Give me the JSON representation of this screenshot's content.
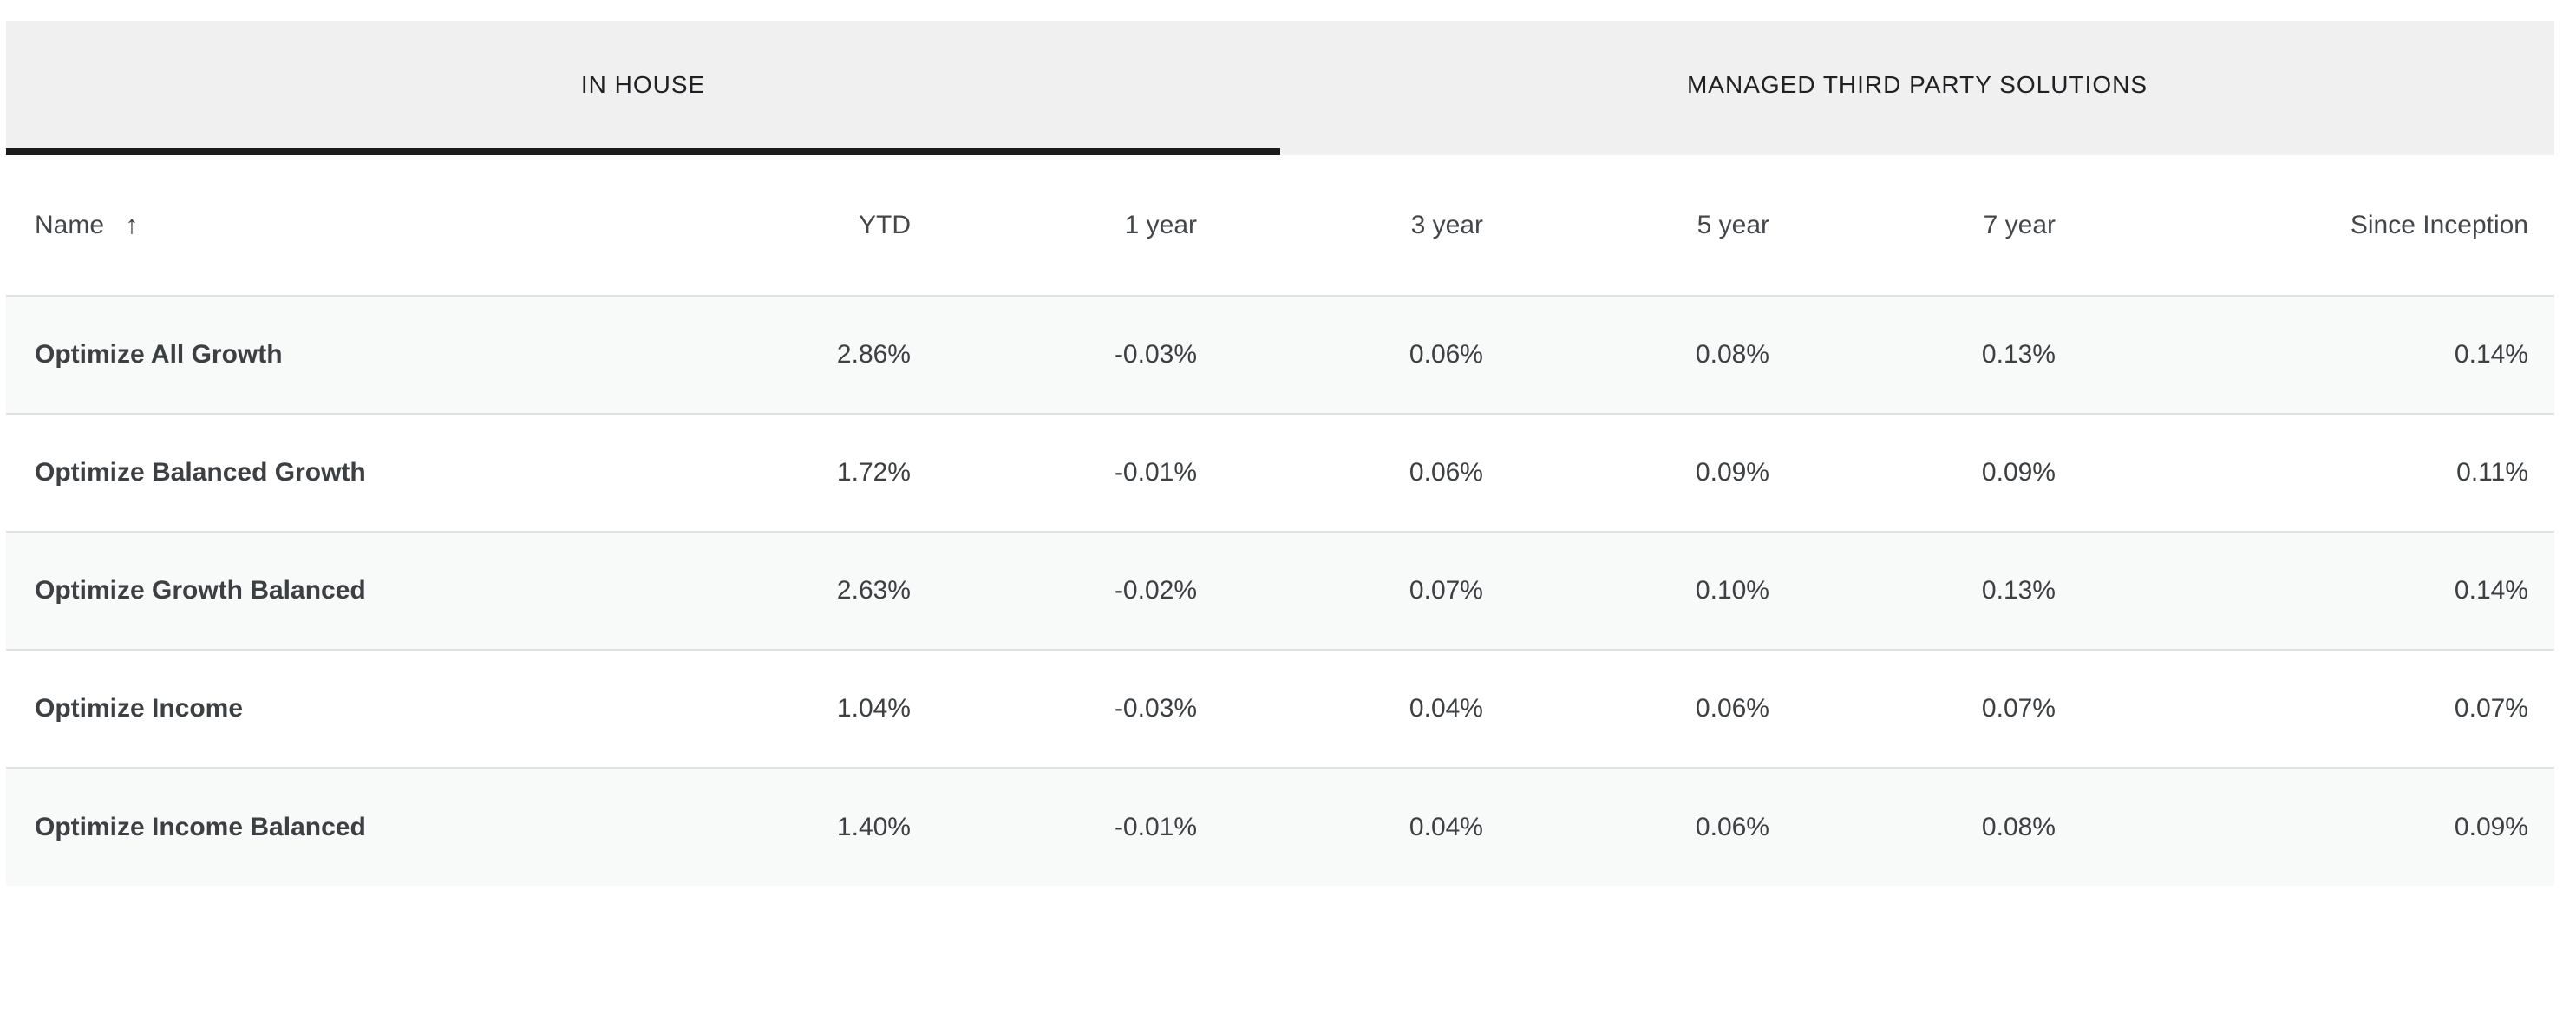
{
  "tabs": [
    {
      "label": "IN HOUSE",
      "active": true
    },
    {
      "label": "MANAGED THIRD PARTY SOLUTIONS",
      "active": false
    }
  ],
  "table": {
    "sort_icon": "↑",
    "columns": [
      "Name",
      "YTD",
      "1 year",
      "3 year",
      "5 year",
      "7 year",
      "Since Inception"
    ],
    "rows": [
      {
        "name": "Optimize All Growth",
        "values": [
          "2.86%",
          "-0.03%",
          "0.06%",
          "0.08%",
          "0.13%",
          "0.14%"
        ]
      },
      {
        "name": "Optimize Balanced Growth",
        "values": [
          "1.72%",
          "-0.01%",
          "0.06%",
          "0.09%",
          "0.09%",
          "0.11%"
        ]
      },
      {
        "name": "Optimize Growth Balanced",
        "values": [
          "2.63%",
          "-0.02%",
          "0.07%",
          "0.10%",
          "0.13%",
          "0.14%"
        ]
      },
      {
        "name": "Optimize Income",
        "values": [
          "1.04%",
          "-0.03%",
          "0.04%",
          "0.06%",
          "0.07%",
          "0.07%"
        ]
      },
      {
        "name": "Optimize Income Balanced",
        "values": [
          "1.40%",
          "-0.01%",
          "0.04%",
          "0.06%",
          "0.08%",
          "0.09%"
        ]
      }
    ]
  },
  "colors": {
    "tab_bar_background": "#f0f0f0",
    "active_tab_underline": "#1b1b1b",
    "row_alt_background": "#f8f9f9",
    "row_border": "#dfe1e1",
    "text_primary": "#3c4043",
    "text_header": "#44474a"
  }
}
